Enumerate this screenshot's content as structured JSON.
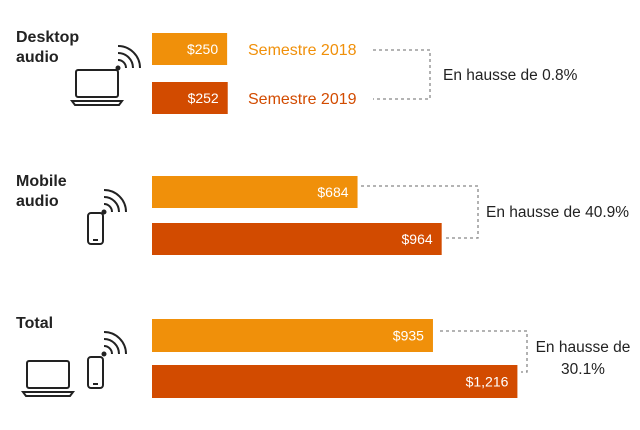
{
  "chart_data": {
    "type": "bar",
    "orientation": "horizontal",
    "categories": [
      "Desktop audio",
      "Mobile audio",
      "Total"
    ],
    "category_label_lines": [
      [
        "Desktop",
        "audio"
      ],
      [
        "Mobile",
        "audio"
      ],
      [
        "Total"
      ]
    ],
    "series": [
      {
        "name": "Semestre 2018",
        "values": [
          250,
          684,
          935
        ],
        "labels": [
          "$250",
          "$684",
          "$935"
        ]
      },
      {
        "name": "Semestre 2019",
        "values": [
          252,
          964,
          1216
        ],
        "labels": [
          "$252",
          "$964",
          "$1,216"
        ]
      }
    ],
    "annotations": [
      {
        "lines": [
          "En hausse de 0.8%"
        ]
      },
      {
        "lines": [
          "En hausse de 40.9%"
        ]
      },
      {
        "lines": [
          "En hausse de",
          "30.1%"
        ]
      }
    ],
    "icons": [
      [
        "laptop-icon",
        "wifi-icon"
      ],
      [
        "phone-icon",
        "wifi-icon"
      ],
      [
        "laptop-icon",
        "phone-icon",
        "wifi-icon"
      ]
    ],
    "legend": "inline",
    "grid": false,
    "title": "",
    "xlabel": "",
    "ylabel": ""
  },
  "colors": {
    "series_2018": "#F0900A",
    "series_2019": "#D24B00",
    "text": "#222222",
    "bracket": "#888888"
  }
}
